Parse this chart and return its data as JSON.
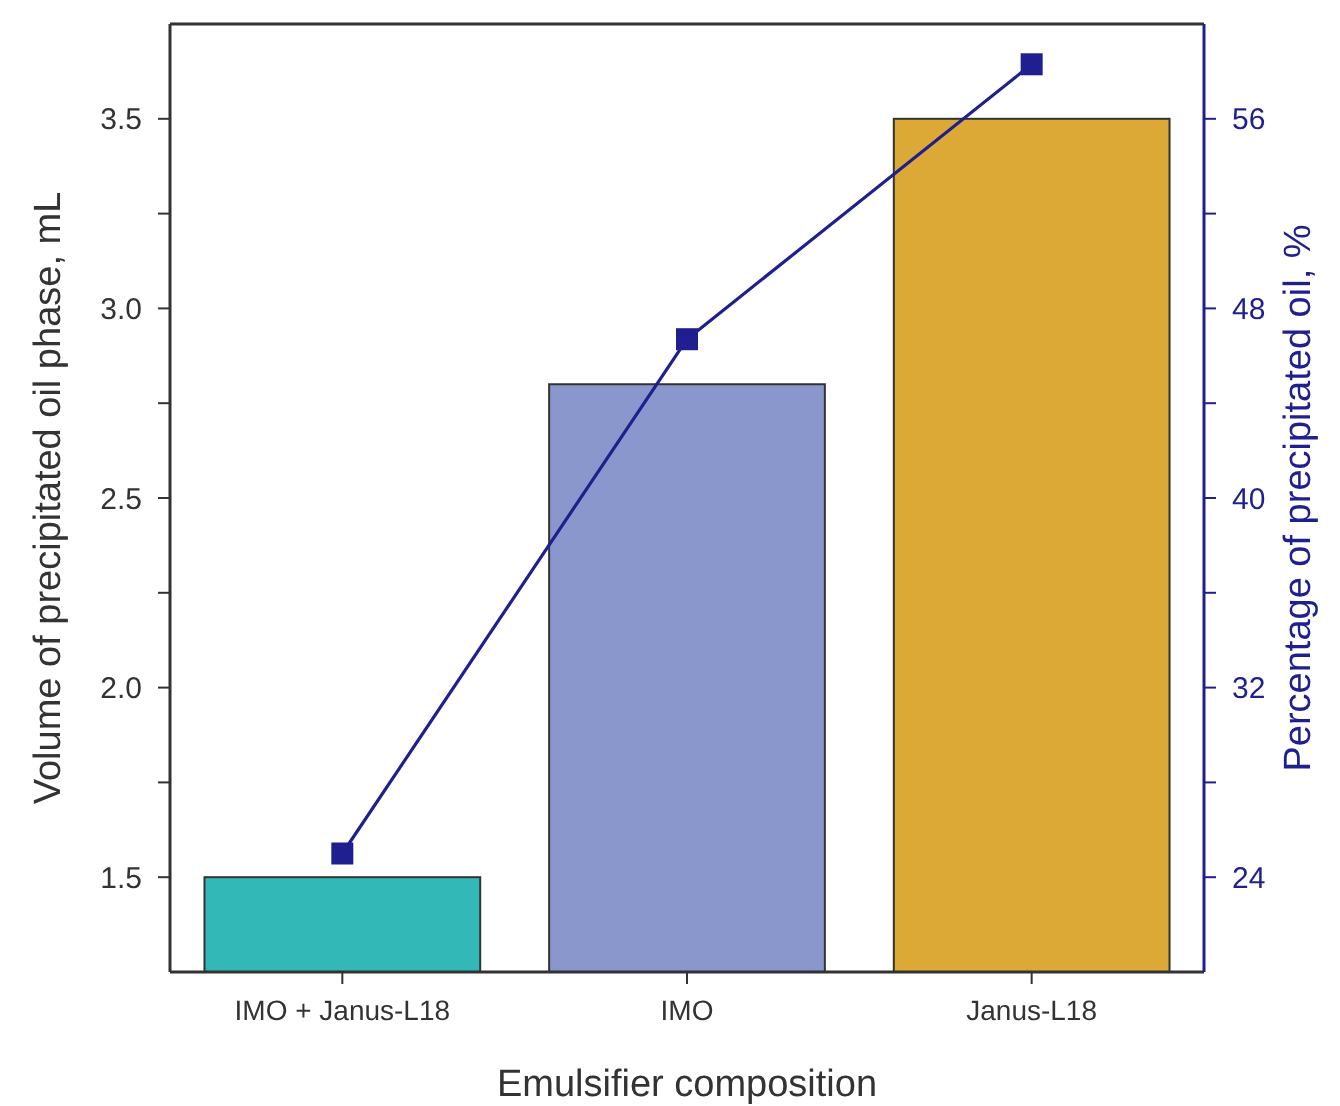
{
  "chart_data": {
    "type": "bar",
    "xlabel": "Emulsifier composition",
    "ylabel": "Volume of precipitated oil phase, mL",
    "y2label": "Percentage of precipitated oil, %",
    "categories": [
      "IMO + Janus-L18",
      "IMO",
      "Janus-L18"
    ],
    "series": [
      {
        "colors": [
          "#33b8b8",
          "#8a97cc",
          "#dca936"
        ],
        "values": [
          1.5,
          2.8,
          3.5
        ]
      },
      {
        "type": "line",
        "axis": "y2",
        "color": "#1f1f8f",
        "marker": "square",
        "values": [
          25,
          46.7,
          58.3
        ]
      }
    ],
    "ylim": [
      1.25,
      3.75
    ],
    "yticks": [
      {
        "value": 1.5,
        "label": "1.5"
      },
      {
        "value": 1.75,
        "label": null
      },
      {
        "value": 2,
        "label": "2.0"
      },
      {
        "value": 2.25,
        "label": null
      },
      {
        "value": 2.5,
        "label": "2.5"
      },
      {
        "value": 2.75,
        "label": null
      },
      {
        "value": 3,
        "label": "3.0"
      },
      {
        "value": 3.25,
        "label": null
      },
      {
        "value": 3.5,
        "label": "3.5"
      }
    ],
    "y2lim": [
      20,
      60
    ],
    "y2ticks": [
      24,
      {
        "value": 28,
        "label": null
      },
      32,
      {
        "value": 36,
        "label": null
      },
      40,
      {
        "value": 44,
        "label": null
      },
      48,
      {
        "value": 52,
        "label": null
      },
      56
    ],
    "grid": false
  }
}
